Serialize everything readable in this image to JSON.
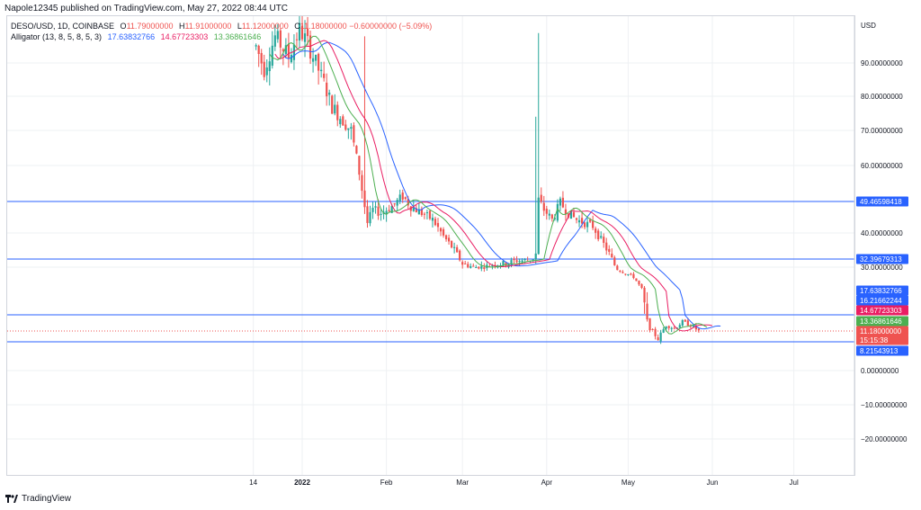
{
  "header": {
    "published": "Napole12345 published on TradingView.com, May 27, 2022 08:44 UTC"
  },
  "legend": {
    "symbol": "DESO/USD, 1D, COINBASE",
    "o_label": "O",
    "o_value": "11.79000000",
    "h_label": "H",
    "h_value": "11.91000000",
    "l_label": "L",
    "l_value": "11.12000000",
    "c_label": "C",
    "c_value": "11.18000000",
    "change": "−0.60000000 (−5.09%)",
    "indicator": "Alligator (13, 8, 5, 8, 5, 3)",
    "jaw_value": "17.63832766",
    "teeth_value": "14.67723303",
    "lips_value": "13.36861646"
  },
  "footer": {
    "brand": "TradingView"
  },
  "colors": {
    "up": "#26a69a",
    "down": "#ef5350",
    "jaw": "#2962ff",
    "teeth": "#e91e63",
    "lips": "#4caf50",
    "hline": "#2962ff",
    "grid": "#eef0f3"
  },
  "chart_data": {
    "type": "candlestick",
    "currency": "USD",
    "y_ticks": [
      "90.00000000",
      "80.00000000",
      "70.00000000",
      "60.00000000",
      "40.00000000",
      "30.00000000",
      "0.00000000",
      "−10.00000000",
      "−20.00000000"
    ],
    "y_tick_values": [
      90,
      80,
      70,
      60,
      40,
      30,
      0,
      -10,
      -20
    ],
    "x_ticks": [
      "14",
      "2022",
      "Feb",
      "Mar",
      "Apr",
      "May",
      "Jun",
      "Jul"
    ],
    "x_tick_dates": [
      "2021-12-14",
      "2022-01-01",
      "2022-02-01",
      "2022-03-01",
      "2022-04-01",
      "2022-05-01",
      "2022-06-01",
      "2022-07-01"
    ],
    "horizontal_lines": [
      49.46598418,
      32.39679313,
      16.21662244,
      8.21543913
    ],
    "price_tags": [
      {
        "label": "49.46598418",
        "kind": "line"
      },
      {
        "label": "32.39679313",
        "kind": "line"
      },
      {
        "label": "17.63832766",
        "kind": "jaw"
      },
      {
        "label": "16.21662244",
        "kind": "line"
      },
      {
        "label": "14.67723303",
        "kind": "teeth"
      },
      {
        "label": "13.36861646",
        "kind": "lips"
      },
      {
        "label": "11.18000000",
        "kind": "last"
      },
      {
        "label": "15:15:38",
        "kind": "countdown"
      },
      {
        "label": "8.21543913",
        "kind": "line"
      }
    ],
    "close_path": [
      [
        "2021-12-15",
        95
      ],
      [
        "2021-12-18",
        88
      ],
      [
        "2021-12-22",
        98
      ],
      [
        "2021-12-27",
        92
      ],
      [
        "2021-12-31",
        100
      ],
      [
        "2022-01-03",
        96
      ],
      [
        "2022-01-06",
        90
      ],
      [
        "2022-01-09",
        84
      ],
      [
        "2022-01-12",
        77
      ],
      [
        "2022-01-15",
        74
      ],
      [
        "2022-01-19",
        70
      ],
      [
        "2022-01-22",
        58
      ],
      [
        "2022-01-25",
        43
      ],
      [
        "2022-01-27",
        47
      ],
      [
        "2022-01-30",
        46
      ],
      [
        "2022-02-03",
        48
      ],
      [
        "2022-02-07",
        51
      ],
      [
        "2022-02-10",
        48
      ],
      [
        "2022-02-14",
        46
      ],
      [
        "2022-02-18",
        44
      ],
      [
        "2022-02-22",
        39
      ],
      [
        "2022-02-26",
        35
      ],
      [
        "2022-03-01",
        31
      ],
      [
        "2022-03-05",
        30
      ],
      [
        "2022-03-09",
        30
      ],
      [
        "2022-03-13",
        31
      ],
      [
        "2022-03-17",
        31
      ],
      [
        "2022-03-21",
        32
      ],
      [
        "2022-03-25",
        32
      ],
      [
        "2022-03-28",
        33
      ],
      [
        "2022-03-29",
        50
      ],
      [
        "2022-03-31",
        47
      ],
      [
        "2022-04-03",
        44
      ],
      [
        "2022-04-06",
        49
      ],
      [
        "2022-04-09",
        46
      ],
      [
        "2022-04-12",
        44
      ],
      [
        "2022-04-15",
        43
      ],
      [
        "2022-04-18",
        42
      ],
      [
        "2022-04-21",
        38
      ],
      [
        "2022-04-24",
        34
      ],
      [
        "2022-04-27",
        29
      ],
      [
        "2022-04-30",
        27
      ],
      [
        "2022-05-03",
        25
      ],
      [
        "2022-05-06",
        19
      ],
      [
        "2022-05-09",
        12
      ],
      [
        "2022-05-12",
        9
      ],
      [
        "2022-05-15",
        13
      ],
      [
        "2022-05-18",
        12
      ],
      [
        "2022-05-21",
        14
      ],
      [
        "2022-05-24",
        13
      ],
      [
        "2022-05-27",
        11.18
      ]
    ]
  }
}
